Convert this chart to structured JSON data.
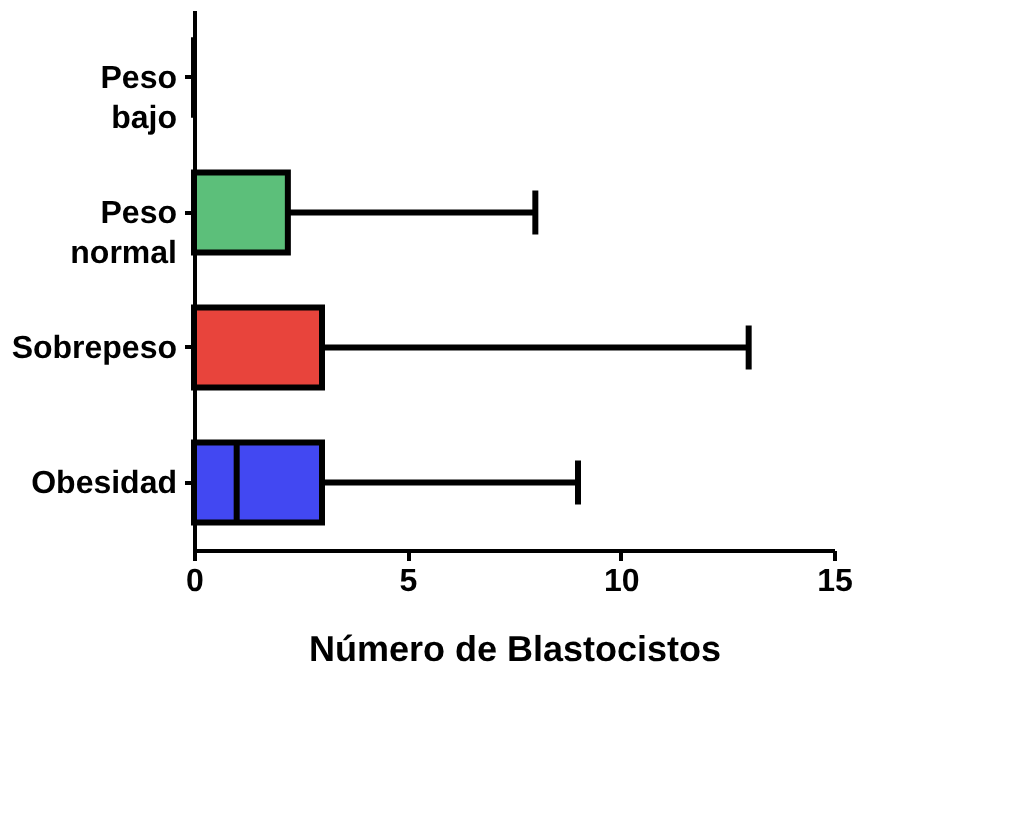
{
  "chart_data": {
    "type": "box",
    "orientation": "horizontal",
    "xlabel": "Número de Blastocistos",
    "categories": [
      "Peso bajo",
      "Peso normal",
      "Sobrepeso",
      "Obesidad"
    ],
    "colors": [
      "#000000",
      "#5cbf7a",
      "#e8443c",
      "#4248f2"
    ],
    "boxes": [
      {
        "low": 0,
        "q1": 0,
        "median": 0,
        "q3": 0,
        "high": 0
      },
      {
        "low": 0,
        "q1": 0,
        "median": 0,
        "q3": 2.2,
        "high": 8
      },
      {
        "low": 0,
        "q1": 0,
        "median": 0,
        "q3": 3,
        "high": 13
      },
      {
        "low": 0,
        "q1": 0,
        "median": 1,
        "q3": 3,
        "high": 9
      }
    ],
    "xlim": [
      0,
      15
    ],
    "xticks": [
      0,
      5,
      10,
      15
    ],
    "grid": false,
    "legend": false
  }
}
